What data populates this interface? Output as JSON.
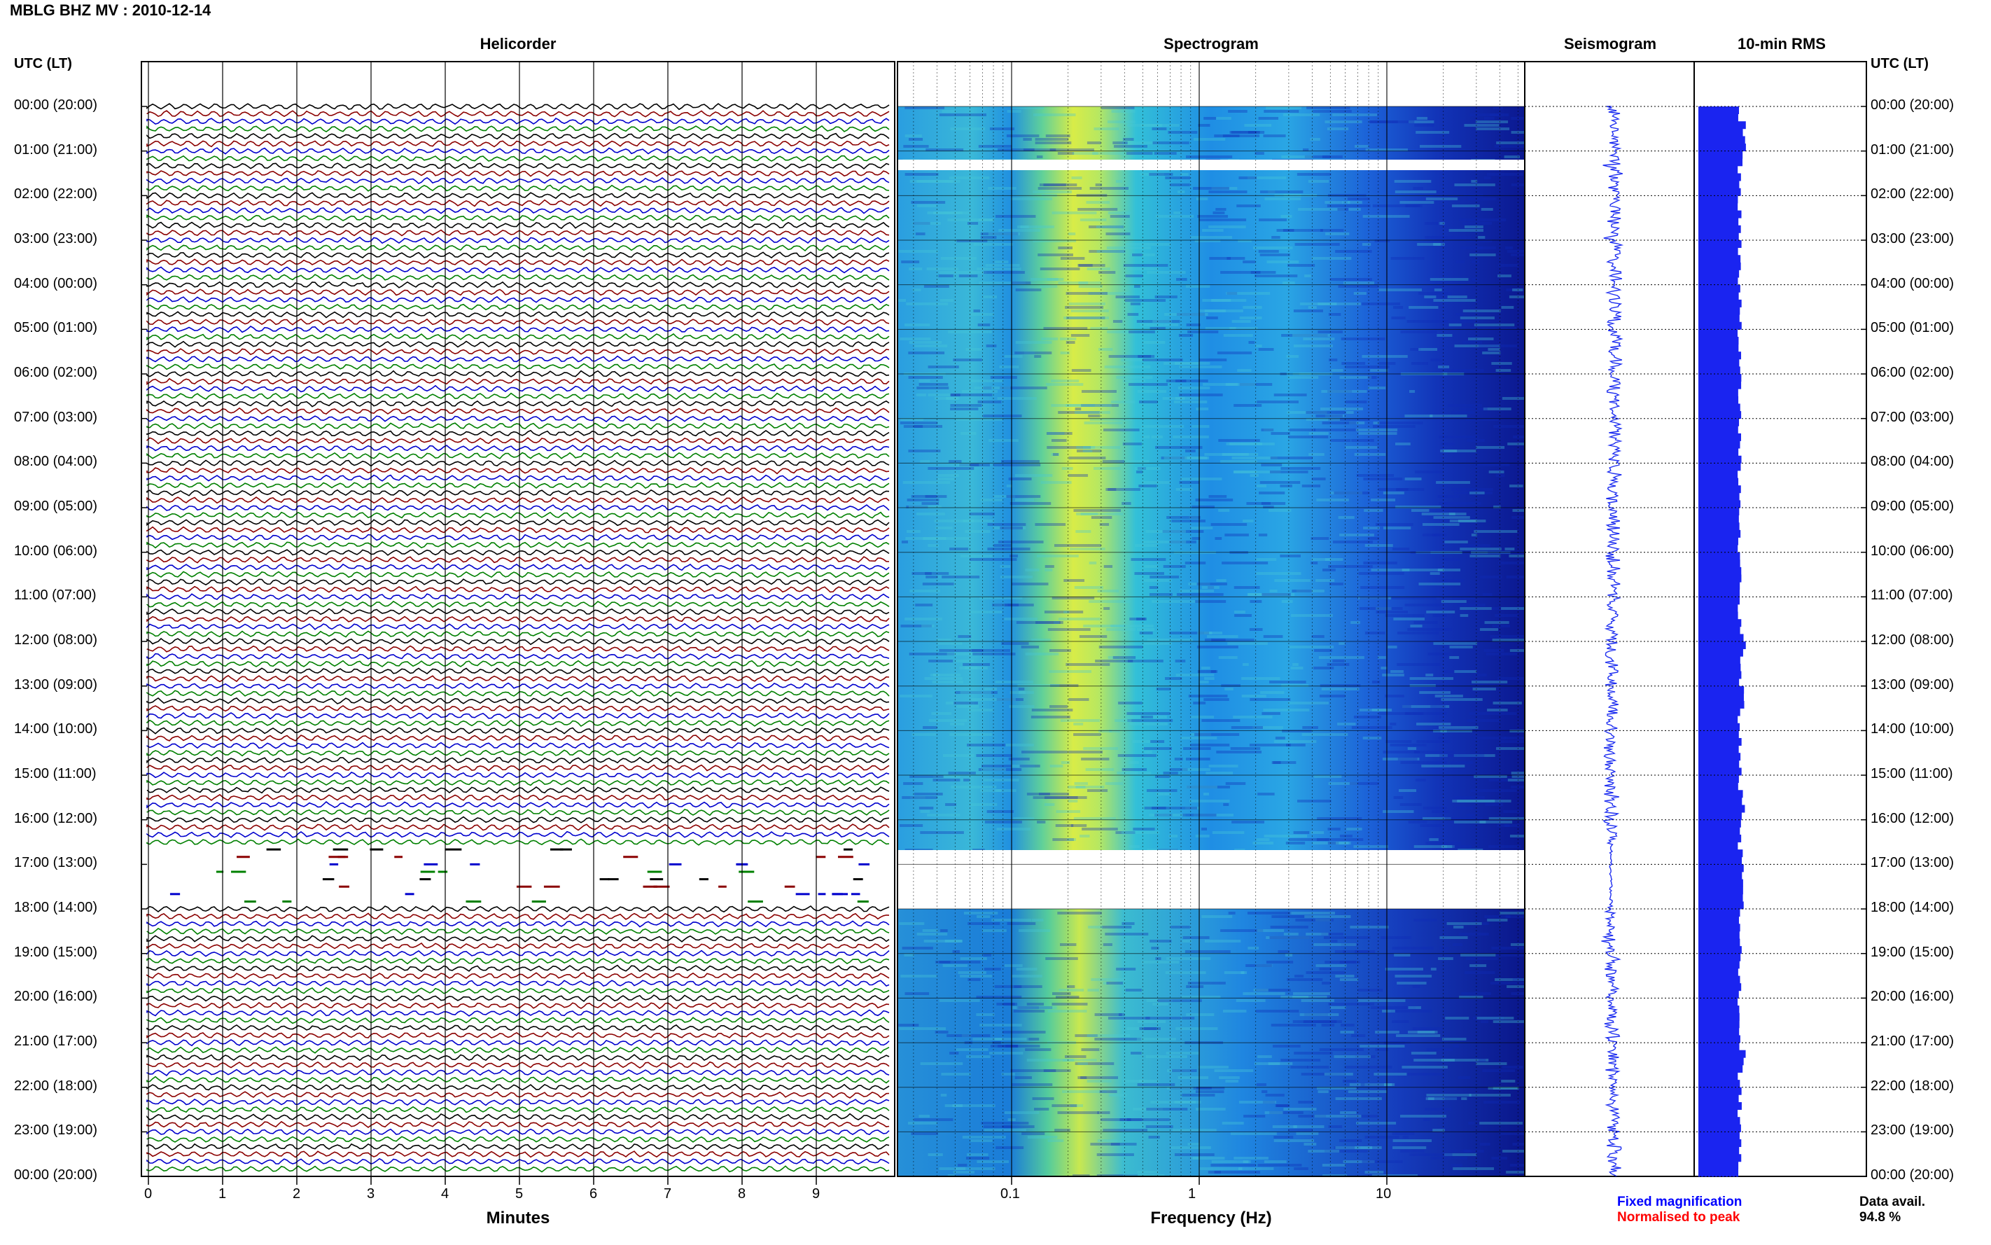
{
  "header": {
    "station_title": "MBLG BHZ MV : 2010-12-14",
    "utc_label_left": "UTC (LT)",
    "utc_label_right": "UTC (LT)"
  },
  "panels": {
    "helicorder": "Helicorder",
    "spectrogram": "Spectrogram",
    "seismogram": "Seismogram",
    "rms": "10-min RMS"
  },
  "axes": {
    "minutes_label": "Minutes",
    "frequency_label": "Frequency (Hz)",
    "minute_ticks": [
      "0",
      "1",
      "2",
      "3",
      "4",
      "5",
      "6",
      "7",
      "8",
      "9"
    ],
    "frequency_ticks": [
      "0.1",
      "1",
      "10"
    ]
  },
  "time_labels": [
    "00:00 (20:00)",
    "01:00 (21:00)",
    "02:00 (22:00)",
    "03:00 (23:00)",
    "04:00 (00:00)",
    "05:00 (01:00)",
    "06:00 (02:00)",
    "07:00 (03:00)",
    "08:00 (04:00)",
    "09:00 (05:00)",
    "10:00 (06:00)",
    "11:00 (07:00)",
    "12:00 (08:00)",
    "13:00 (09:00)",
    "14:00 (10:00)",
    "15:00 (11:00)",
    "16:00 (12:00)",
    "17:00 (13:00)",
    "18:00 (14:00)",
    "19:00 (15:00)",
    "20:00 (16:00)",
    "21:00 (17:00)",
    "22:00 (18:00)",
    "23:00 (19:00)",
    "00:00 (20:00)"
  ],
  "legend": {
    "fixed": "Fixed magnification",
    "normalised": "Normalised to peak",
    "fixed_color": "#0000ff",
    "normalised_color": "#ff0000"
  },
  "data_availability": {
    "label": "Data avail.",
    "value": "94.8 %"
  },
  "colors": {
    "trace_cycle": [
      "#000000",
      "#8b0000",
      "#0000cd",
      "#008000"
    ],
    "seismogram": "#1e2ef0",
    "rms": "#1a24f0",
    "spectrogram_low": "#0b1890",
    "spectrogram_high": "#e6f040"
  },
  "chart_data": [
    {
      "type": "line",
      "title": "Helicorder",
      "xlabel": "Minutes",
      "xlim": [
        0,
        10
      ],
      "rows_per_hour": 6,
      "hours": 24,
      "data_gaps_utc_hours": [
        [
          16.6,
          17.9
        ]
      ],
      "partial_gap_utc_hours": [
        [
          0.9,
          1.1
        ]
      ]
    },
    {
      "type": "heatmap",
      "title": "Spectrogram",
      "xlabel": "Frequency (Hz)",
      "xscale": "log",
      "xlim": [
        0.02,
        50
      ],
      "peak_frequency_band_hz": [
        0.15,
        0.3
      ],
      "no_data_utc_hours": [
        [
          1.2,
          1.4
        ],
        [
          16.6,
          18.0
        ]
      ]
    },
    {
      "type": "line",
      "title": "Seismogram",
      "hours": 24
    },
    {
      "type": "bar",
      "title": "10-min RMS",
      "bins_per_hour": 6,
      "relative_level": 0.55,
      "peak_bins_utc_hours": [
        0.5,
        1.0,
        12.0,
        13.2,
        15.5,
        21.3
      ]
    }
  ]
}
